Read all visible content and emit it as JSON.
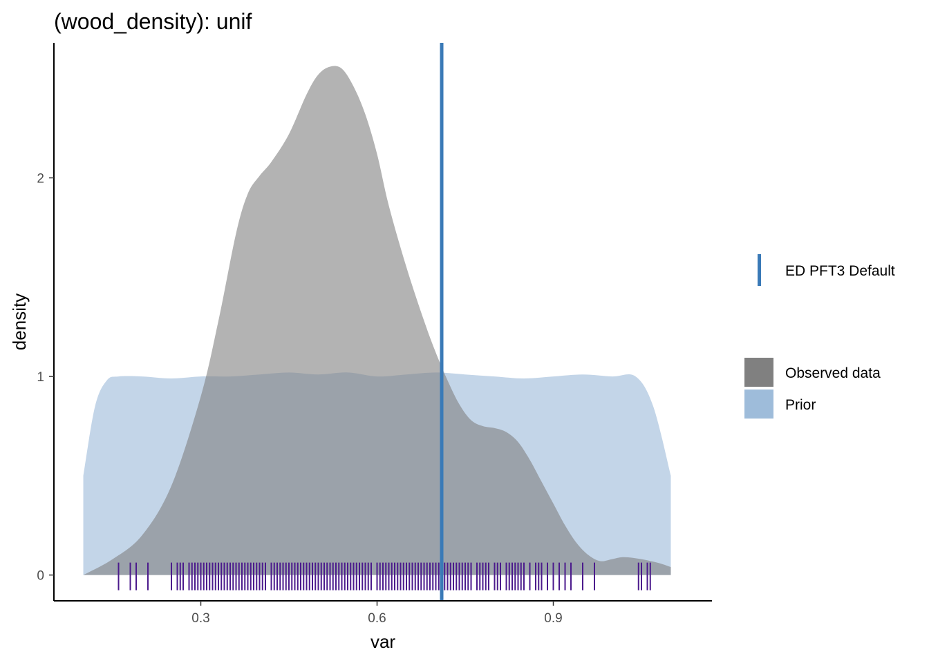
{
  "chart_data": {
    "type": "area",
    "title": "(wood_density): unif",
    "xlabel": "var",
    "ylabel": "density",
    "xlim": [
      0.05,
      1.17
    ],
    "ylim": [
      -0.13,
      2.68
    ],
    "x_ticks": [
      0.3,
      0.6,
      0.9
    ],
    "x_tick_labels": [
      "0.3",
      "0.6",
      "0.9"
    ],
    "y_ticks": [
      0,
      1,
      2
    ],
    "y_tick_labels": [
      "0",
      "1",
      "2"
    ],
    "grid": false,
    "legend_position": "right",
    "series": [
      {
        "name": "Prior",
        "color": "#9ebcda",
        "opacity": 0.62,
        "x": [
          0.1,
          0.12,
          0.14,
          0.16,
          0.2,
          0.25,
          0.3,
          0.35,
          0.4,
          0.45,
          0.5,
          0.55,
          0.6,
          0.65,
          0.7,
          0.75,
          0.8,
          0.85,
          0.9,
          0.95,
          1.0,
          1.04,
          1.07,
          1.1
        ],
        "y": [
          0.5,
          0.85,
          0.98,
          1.0,
          1.0,
          0.99,
          1.0,
          1.0,
          1.01,
          1.02,
          1.01,
          1.02,
          1.0,
          1.01,
          1.02,
          1.01,
          1.0,
          0.99,
          1.0,
          1.01,
          1.0,
          1.0,
          0.85,
          0.5
        ]
      },
      {
        "name": "Observed data",
        "color": "#808080",
        "opacity": 0.6,
        "x": [
          0.1,
          0.15,
          0.2,
          0.25,
          0.3,
          0.33,
          0.36,
          0.38,
          0.4,
          0.42,
          0.45,
          0.48,
          0.5,
          0.52,
          0.54,
          0.56,
          0.58,
          0.6,
          0.62,
          0.65,
          0.68,
          0.7,
          0.72,
          0.74,
          0.76,
          0.78,
          0.8,
          0.82,
          0.84,
          0.86,
          0.88,
          0.9,
          0.92,
          0.94,
          0.96,
          0.98,
          1.0,
          1.02,
          1.05,
          1.08,
          1.1
        ],
        "y": [
          0.0,
          0.08,
          0.2,
          0.45,
          0.9,
          1.28,
          1.72,
          1.92,
          2.01,
          2.08,
          2.22,
          2.42,
          2.52,
          2.56,
          2.55,
          2.46,
          2.32,
          2.12,
          1.86,
          1.55,
          1.28,
          1.12,
          0.98,
          0.86,
          0.78,
          0.75,
          0.74,
          0.72,
          0.67,
          0.58,
          0.47,
          0.36,
          0.25,
          0.16,
          0.1,
          0.07,
          0.08,
          0.09,
          0.08,
          0.06,
          0.04
        ]
      }
    ],
    "reference_line": {
      "name": "ED PFT3 Default",
      "x": 0.71,
      "color": "#3a7ab7"
    },
    "rug": {
      "color": "#4b1a8c",
      "values": [
        0.16,
        0.18,
        0.19,
        0.21,
        0.25,
        0.26,
        0.265,
        0.27,
        0.28,
        0.285,
        0.29,
        0.295,
        0.3,
        0.305,
        0.31,
        0.315,
        0.32,
        0.325,
        0.33,
        0.335,
        0.34,
        0.345,
        0.35,
        0.355,
        0.36,
        0.365,
        0.37,
        0.375,
        0.38,
        0.385,
        0.39,
        0.395,
        0.4,
        0.405,
        0.41,
        0.42,
        0.425,
        0.43,
        0.435,
        0.44,
        0.445,
        0.45,
        0.455,
        0.46,
        0.465,
        0.47,
        0.475,
        0.48,
        0.485,
        0.49,
        0.495,
        0.5,
        0.505,
        0.51,
        0.515,
        0.52,
        0.525,
        0.53,
        0.535,
        0.54,
        0.545,
        0.55,
        0.555,
        0.56,
        0.565,
        0.57,
        0.575,
        0.58,
        0.585,
        0.59,
        0.6,
        0.605,
        0.61,
        0.615,
        0.62,
        0.625,
        0.63,
        0.635,
        0.64,
        0.645,
        0.65,
        0.655,
        0.66,
        0.665,
        0.67,
        0.675,
        0.68,
        0.685,
        0.69,
        0.695,
        0.7,
        0.705,
        0.71,
        0.715,
        0.72,
        0.725,
        0.73,
        0.735,
        0.74,
        0.745,
        0.75,
        0.755,
        0.76,
        0.77,
        0.775,
        0.78,
        0.785,
        0.79,
        0.8,
        0.805,
        0.81,
        0.82,
        0.825,
        0.83,
        0.835,
        0.84,
        0.845,
        0.85,
        0.86,
        0.87,
        0.875,
        0.88,
        0.89,
        0.9,
        0.91,
        0.92,
        0.93,
        0.95,
        0.97,
        1.045,
        1.05,
        1.06,
        1.065
      ]
    }
  }
}
